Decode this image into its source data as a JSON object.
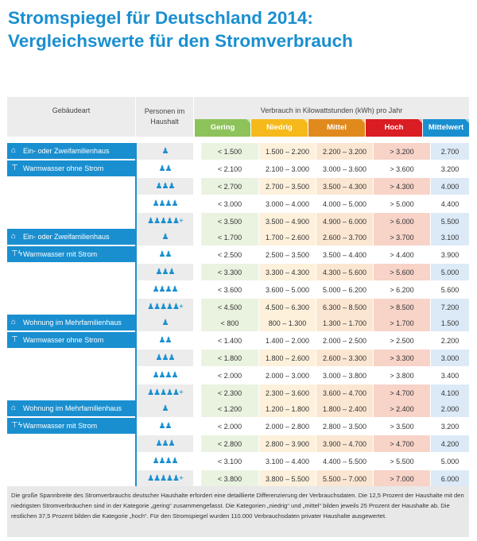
{
  "title": {
    "line1": "Stromspiegel für Deutschland 2014:",
    "line2": "Vergleichswerte für den Stromverbrauch"
  },
  "header": {
    "gebaeudeart": "Gebäudeart",
    "personen": "Personen im Haushalt",
    "verbrauch": "Verbrauch in Kilowattstunden (kWh) pro Jahr",
    "categories": [
      {
        "label": "Gering",
        "color": "#8dc35a",
        "light": "#eaf3e0"
      },
      {
        "label": "Niedrig",
        "color": "#f5b91c",
        "light": "#fdf1dc"
      },
      {
        "label": "Mittel",
        "color": "#e08a1e",
        "light": "#fbe6d2"
      },
      {
        "label": "Hoch",
        "color": "#d91d22",
        "light": "#f7d3c8"
      },
      {
        "label": "Mittelwert",
        "color": "#1a8fd0",
        "light": "#dceaf7"
      }
    ]
  },
  "persons_icons": [
    "person-1-icon",
    "persons-2-icon",
    "persons-3-icon",
    "persons-4-icon",
    "persons-5-plus-icon"
  ],
  "groups": [
    {
      "building": "Ein- oder Zweifamilienhaus",
      "building_icon": "house-icon",
      "water": "Warmwasser ohne Strom",
      "water_icon": "tap-icon",
      "rows": [
        [
          "< 1.500",
          "1.500 – 2.200",
          "2.200 – 3.200",
          "> 3.200",
          "2.700"
        ],
        [
          "< 2.100",
          "2.100 – 3.000",
          "3.000 – 3.600",
          "> 3.600",
          "3.200"
        ],
        [
          "< 2.700",
          "2.700 – 3.500",
          "3.500 – 4.300",
          "> 4.300",
          "4.000"
        ],
        [
          "< 3.000",
          "3.000 – 4.000",
          "4.000 – 5.000",
          "> 5.000",
          "4.400"
        ],
        [
          "< 3.500",
          "3.500 – 4.900",
          "4.900 – 6.000",
          "> 6.000",
          "5.500"
        ]
      ]
    },
    {
      "building": "Ein- oder Zweifamilienhaus",
      "building_icon": "house-icon",
      "water": "Warmwasser mit Strom",
      "water_icon": "tap-electric-icon",
      "rows": [
        [
          "< 1.700",
          "1.700 – 2.600",
          "2.600 – 3.700",
          "> 3.700",
          "3.100"
        ],
        [
          "< 2.500",
          "2.500 – 3.500",
          "3.500 – 4.400",
          "> 4.400",
          "3.900"
        ],
        [
          "< 3.300",
          "3.300 – 4.300",
          "4.300 – 5.600",
          "> 5.600",
          "5.000"
        ],
        [
          "< 3.600",
          "3.600 – 5.000",
          "5.000 – 6.200",
          "> 6.200",
          "5.600"
        ],
        [
          "< 4.500",
          "4.500 – 6.300",
          "6.300 – 8.500",
          "> 8.500",
          "7.200"
        ]
      ]
    },
    {
      "building": "Wohnung im Mehrfamilienhaus",
      "building_icon": "apartment-house-icon",
      "water": "Warmwasser ohne Strom",
      "water_icon": "tap-icon",
      "rows": [
        [
          "< 800",
          "800 – 1.300",
          "1.300 – 1.700",
          "> 1.700",
          "1.500"
        ],
        [
          "< 1.400",
          "1.400 – 2.000",
          "2.000 – 2.500",
          "> 2.500",
          "2.200"
        ],
        [
          "< 1.800",
          "1.800 – 2.600",
          "2.600 – 3.300",
          "> 3.300",
          "3.000"
        ],
        [
          "< 2.000",
          "2.000 – 3.000",
          "3.000 – 3.800",
          "> 3.800",
          "3.400"
        ],
        [
          "< 2.300",
          "2.300 – 3.600",
          "3.600 – 4.700",
          "> 4.700",
          "4.100"
        ]
      ]
    },
    {
      "building": "Wohnung im Mehrfamilienhaus",
      "building_icon": "apartment-house-icon",
      "water": "Warmwasser mit Strom",
      "water_icon": "tap-electric-icon",
      "rows": [
        [
          "< 1.200",
          "1.200 – 1.800",
          "1.800 – 2.400",
          "> 2.400",
          "2.000"
        ],
        [
          "< 2.000",
          "2.000 – 2.800",
          "2.800 – 3.500",
          "> 3.500",
          "3.200"
        ],
        [
          "< 2.800",
          "2.800 – 3.900",
          "3.900 – 4.700",
          "> 4.700",
          "4.200"
        ],
        [
          "< 3.100",
          "3.100 – 4.400",
          "4.400 – 5.500",
          "> 5.500",
          "5.000"
        ],
        [
          "< 3.800",
          "3.800 – 5.500",
          "5.500 – 7.000",
          "> 7.000",
          "6.000"
        ]
      ]
    }
  ],
  "note": "Die große Spannbreite des Stromverbrauchs deutscher Haushalte erfordert eine detaillierte Differenzierung der Verbrauchsdaten. Die 12,5 Prozent der Haushalte mit den niedrigsten Stromverbräuchen sind in der Kategorie „gering“ zusammengefasst. Die Kategorien „niedrig“ und „mittel“ bilden jeweils 25 Prozent der Haushalte ab. Die restlichen 37,5 Prozent bilden die Kategorie „hoch“. Für den Stromspiegel wurden 110.000 Verbrauchsdaten privater Haushalte ausgewertet."
}
